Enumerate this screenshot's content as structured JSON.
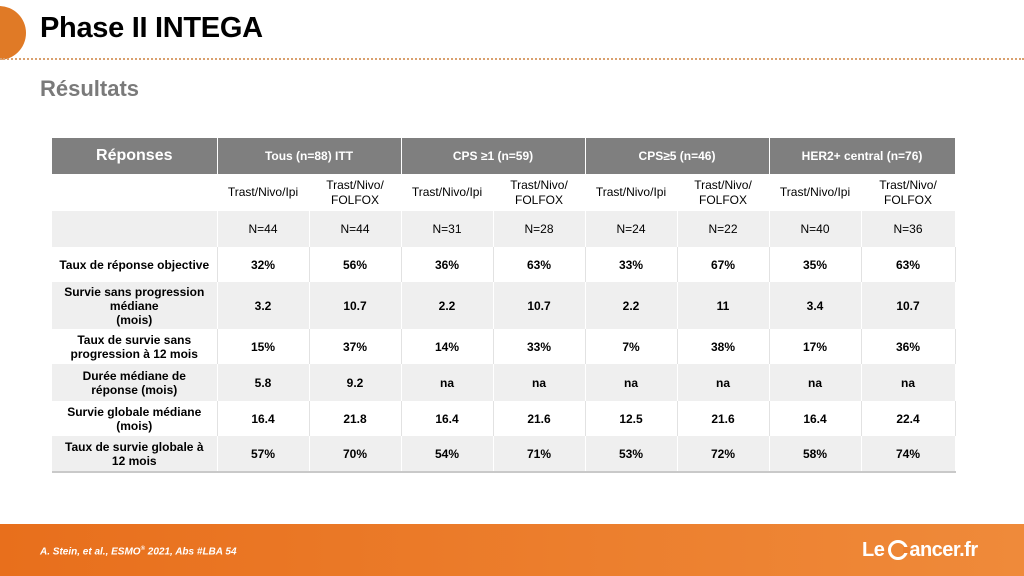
{
  "slide": {
    "title": "Phase II INTEGA",
    "subtitle": "Résultats",
    "citation_pre": "A. Stein, et al.,  ESMO",
    "citation_sup": "®",
    "citation_post": " 2021,  Abs #LBA 54",
    "logo_pre": "Le",
    "logo_post": "ancer.fr"
  },
  "colors": {
    "accent": "#e07a26",
    "header_bg": "#7f7f7f",
    "stripe_bg": "#efefef",
    "footer": "#e86f1c"
  },
  "table": {
    "header": [
      "Réponses",
      "Tous  (n=88) ITT",
      "CPS ≥1 (n=59)",
      "CPS≥5 (n=46)",
      "HER2+ central (n=76)"
    ],
    "arms": [
      [
        "Trast/Nivo/Ipi",
        "Trast/Nivo/",
        "FOLFOX"
      ],
      [
        "Trast/Nivo/Ipi",
        "Trast/Nivo/",
        "FOLFOX"
      ],
      [
        "Trast/Nivo/Ipi",
        "Trast/Nivo/",
        "FOLFOX"
      ],
      [
        "Trast/Nivo/Ipi",
        "Trast/Nivo/",
        "FOLFOX"
      ]
    ],
    "n_values": [
      "N=44",
      "N=44",
      "N=31",
      "N=28",
      "N=24",
      "N=22",
      "N=40",
      "N=36"
    ],
    "rows": [
      {
        "label": [
          "Taux de réponse objective"
        ],
        "values": [
          "32%",
          "56%",
          "36%",
          "63%",
          "33%",
          "67%",
          "35%",
          "63%"
        ]
      },
      {
        "label": [
          "Survie sans progression",
          "médiane",
          "(mois)"
        ],
        "values": [
          "3.2",
          "10.7",
          "2.2",
          "10.7",
          "2.2",
          "11",
          "3.4",
          "10.7"
        ]
      },
      {
        "label": [
          "Taux de survie sans",
          "progression à 12 mois"
        ],
        "values": [
          "15%",
          "37%",
          "14%",
          "33%",
          "7%",
          "38%",
          "17%",
          "36%"
        ]
      },
      {
        "label": [
          "Durée médiane de",
          "réponse (mois)"
        ],
        "values": [
          "5.8",
          "9.2",
          "na",
          "na",
          "na",
          "na",
          "na",
          "na"
        ]
      },
      {
        "label": [
          "Survie globale médiane",
          "(mois)"
        ],
        "values": [
          "16.4",
          "21.8",
          "16.4",
          "21.6",
          "12.5",
          "21.6",
          "16.4",
          "22.4"
        ]
      },
      {
        "label": [
          "Taux de survie globale à",
          "12 mois"
        ],
        "values": [
          "57%",
          "70%",
          "54%",
          "71%",
          "53%",
          "72%",
          "58%",
          "74%"
        ]
      }
    ]
  }
}
